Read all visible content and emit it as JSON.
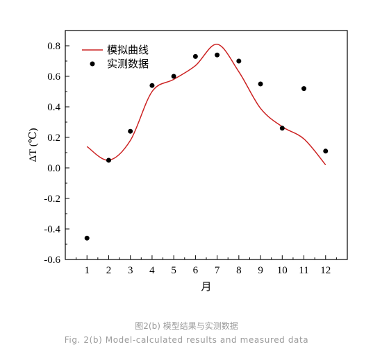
{
  "chart_data": {
    "type": "line",
    "xlabel": "月",
    "ylabel": "ΔT (℃)",
    "x_ticks": [
      "1",
      "2",
      "3",
      "4",
      "5",
      "6",
      "7",
      "8",
      "9",
      "10",
      "11",
      "12"
    ],
    "y_ticks": [
      "0.8",
      "0.6",
      "0.4",
      "0.2",
      "0.0",
      "-0.2",
      "-0.4",
      "-0.6"
    ],
    "xlim": [
      0,
      13
    ],
    "ylim": [
      -0.6,
      0.9
    ],
    "legend_position": "top-left",
    "series": [
      {
        "name": "模拟曲线",
        "kind": "line",
        "color": "#cc2222",
        "x": [
          1,
          2,
          3,
          4,
          5,
          6,
          7,
          8,
          9,
          10,
          11,
          12
        ],
        "y": [
          0.14,
          0.05,
          0.18,
          0.5,
          0.58,
          0.67,
          0.81,
          0.63,
          0.39,
          0.27,
          0.19,
          0.02
        ]
      },
      {
        "name": "实测数据",
        "kind": "scatter",
        "color": "#000000",
        "x": [
          1,
          2,
          3,
          4,
          5,
          6,
          7,
          8,
          9,
          10,
          11,
          12
        ],
        "y": [
          -0.46,
          0.05,
          0.24,
          0.54,
          0.6,
          0.73,
          0.74,
          0.7,
          0.55,
          0.26,
          0.52,
          0.11
        ]
      }
    ]
  },
  "caption": {
    "chinese": "图2(b) 模型结果与实测数据",
    "english": "Fig. 2(b) Model-calculated results and measured data"
  }
}
